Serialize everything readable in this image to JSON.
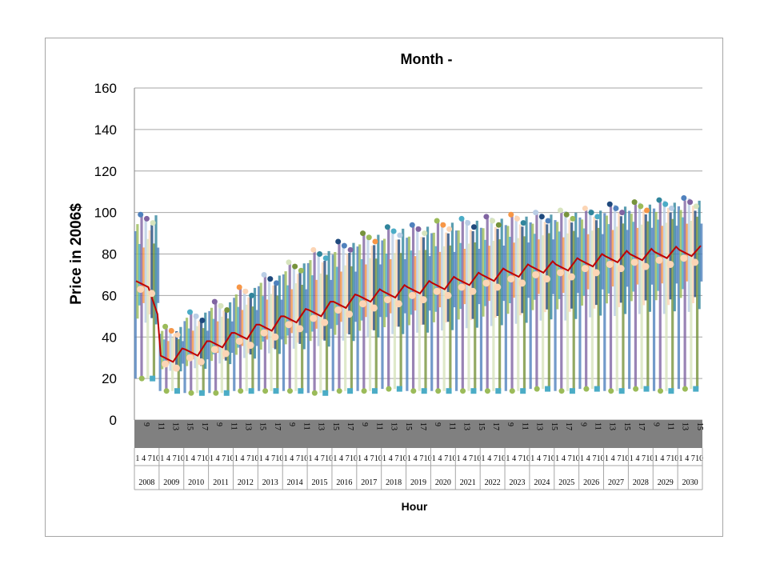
{
  "chart_data": {
    "type": "line",
    "title": "Month -",
    "ylabel": "Price in 2006$",
    "xlabel": "Hour",
    "ylim": [
      0,
      160
    ],
    "yticks": [
      0,
      20,
      40,
      60,
      80,
      100,
      120,
      140,
      160
    ],
    "grid": true,
    "legend": "none",
    "hour_labels": [
      "9",
      "11",
      "13",
      "15",
      "17",
      "9",
      "11",
      "13",
      "15",
      "17",
      "9",
      "11",
      "13",
      "15",
      "17",
      "9",
      "11",
      "13",
      "15",
      "17",
      "9",
      "11",
      "13",
      "15",
      "17",
      "9",
      "11",
      "13",
      "15",
      "17",
      "9",
      "11",
      "13",
      "15",
      "17",
      "9",
      "11",
      "13",
      "15"
    ],
    "month_labels": [
      "1",
      "4",
      "7",
      "10"
    ],
    "years": [
      "2008",
      "2009",
      "2010",
      "2011",
      "2012",
      "2013",
      "2014",
      "2015",
      "2016",
      "2017",
      "2018",
      "2019",
      "2020",
      "2021",
      "2022",
      "2023",
      "2024",
      "2025",
      "2026",
      "2027",
      "2028",
      "2029",
      "2030"
    ],
    "series": [
      {
        "values": [
          67,
          31,
          34,
          38,
          42,
          46,
          50,
          53,
          57,
          60,
          62,
          64,
          66,
          68,
          70,
          72,
          74,
          75,
          77,
          79,
          80,
          81,
          82
        ]
      },
      {
        "values": [
          99,
          45,
          52,
          57,
          64,
          70,
          76,
          82,
          86,
          90,
          93,
          94,
          96,
          97,
          98,
          99,
          100,
          101,
          102,
          104,
          105,
          106,
          107
        ]
      },
      {
        "values": [
          20,
          14,
          13,
          13,
          14,
          14,
          14,
          13,
          14,
          14,
          15,
          14,
          14,
          14,
          14,
          14,
          15,
          14,
          15,
          14,
          15,
          14,
          15
        ]
      }
    ],
    "series_colors": [
      "#c00000",
      "#4f81bd",
      "#9bbb59",
      "#4bacc6",
      "#8064a2",
      "#f79646",
      "#b9cde5",
      "#d7e4bd",
      "#fcd5b5",
      "#1f497d",
      "#77933c",
      "#31859c"
    ]
  }
}
